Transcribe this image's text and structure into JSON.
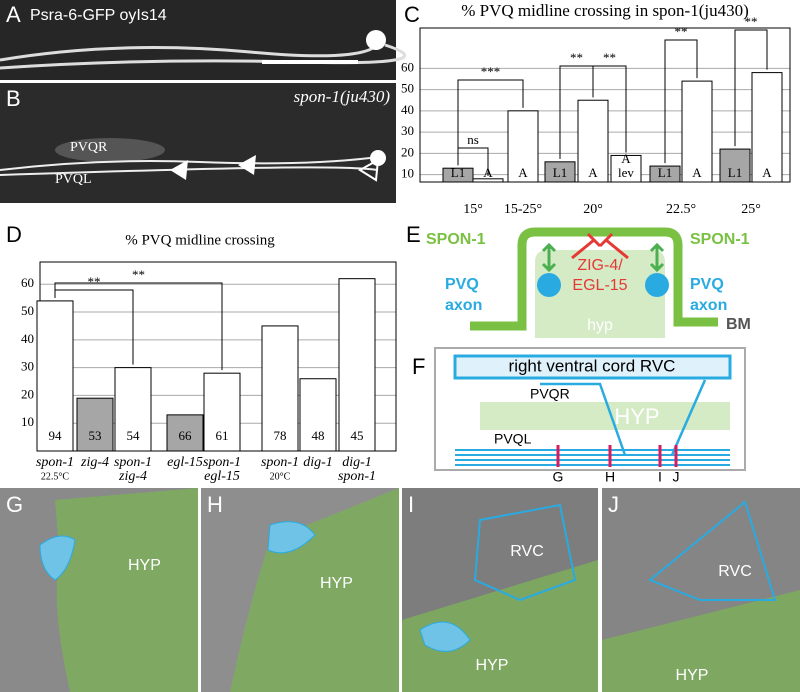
{
  "panels": {
    "A": {
      "label": "A",
      "caption": "Psra-6-GFP oyIs14"
    },
    "B": {
      "label": "B",
      "caption": "spon-1(ju430)",
      "texts": [
        "PVQR",
        "PVQL"
      ]
    },
    "C": {
      "label": "C"
    },
    "D": {
      "label": "D"
    },
    "E": {
      "label": "E",
      "texts": [
        "SPON-1",
        "SPON-1",
        "PVQ",
        "axon",
        "PVQ",
        "axon",
        "ZIG-4/",
        "EGL-15",
        "hyp",
        "BM"
      ]
    },
    "F": {
      "label": "F",
      "texts": [
        "right ventral cord RVC",
        "PVQR",
        "HYP",
        "PVQL",
        "G",
        "H",
        "I",
        "J"
      ]
    },
    "G": {
      "label": "G",
      "texts": [
        "HYP"
      ]
    },
    "H": {
      "label": "H",
      "texts": [
        "HYP"
      ]
    },
    "I": {
      "label": "I",
      "texts": [
        "RVC",
        "HYP"
      ]
    },
    "J": {
      "label": "J",
      "texts": [
        "RVC",
        "HYP"
      ]
    }
  },
  "chart_data": [
    {
      "type": "bar",
      "title": "% PVQ midline crossing in spon-1(ju430)",
      "categories": [
        [
          "L1"
        ],
        [
          "A"
        ],
        [
          "A"
        ],
        [
          "L1"
        ],
        [
          "A"
        ],
        [
          "A",
          "lev"
        ],
        [
          "L1"
        ],
        [
          "A"
        ],
        [
          "L1"
        ],
        [
          "A"
        ]
      ],
      "groups": [
        "15°",
        "15-25°",
        "20°",
        "22.5°",
        "25°"
      ],
      "values": [
        13,
        8,
        40,
        16,
        45,
        19,
        14,
        54,
        22,
        58
      ],
      "colors": [
        "#a6a6a6",
        "#ffffff",
        "#ffffff",
        "#a6a6a6",
        "#ffffff",
        "#ffffff",
        "#a6a6a6",
        "#ffffff",
        "#a6a6a6",
        "#ffffff"
      ],
      "annotations": [
        "ns",
        "***",
        "**",
        "**",
        "**",
        "**"
      ],
      "ylim": [
        6.5,
        79
      ],
      "yticks": [
        10,
        20,
        30,
        40,
        50,
        60
      ],
      "grid": true
    },
    {
      "type": "bar",
      "title": "% PVQ midline crossing",
      "categories": [
        [
          "spon-1",
          "22.5°C"
        ],
        [
          "zig-4"
        ],
        [
          "spon-1",
          "zig-4"
        ],
        [
          "egl-15"
        ],
        [
          "spon-1",
          "egl-15"
        ],
        [
          "spon-1",
          "20°C"
        ],
        [
          "dig-1"
        ],
        [
          "dig-1",
          "spon-1"
        ]
      ],
      "values": [
        54,
        19,
        30,
        13,
        28,
        45,
        26,
        62
      ],
      "n": [
        94,
        53,
        54,
        66,
        61,
        78,
        48,
        45
      ],
      "colors": [
        "#ffffff",
        "#a6a6a6",
        "#ffffff",
        "#a6a6a6",
        "#ffffff",
        "#ffffff",
        "#ffffff",
        "#ffffff"
      ],
      "annotations": [
        "**",
        "**"
      ],
      "ylim": [
        0,
        68
      ],
      "yticks": [
        10,
        20,
        30,
        40,
        50,
        60
      ],
      "grid": true
    }
  ]
}
